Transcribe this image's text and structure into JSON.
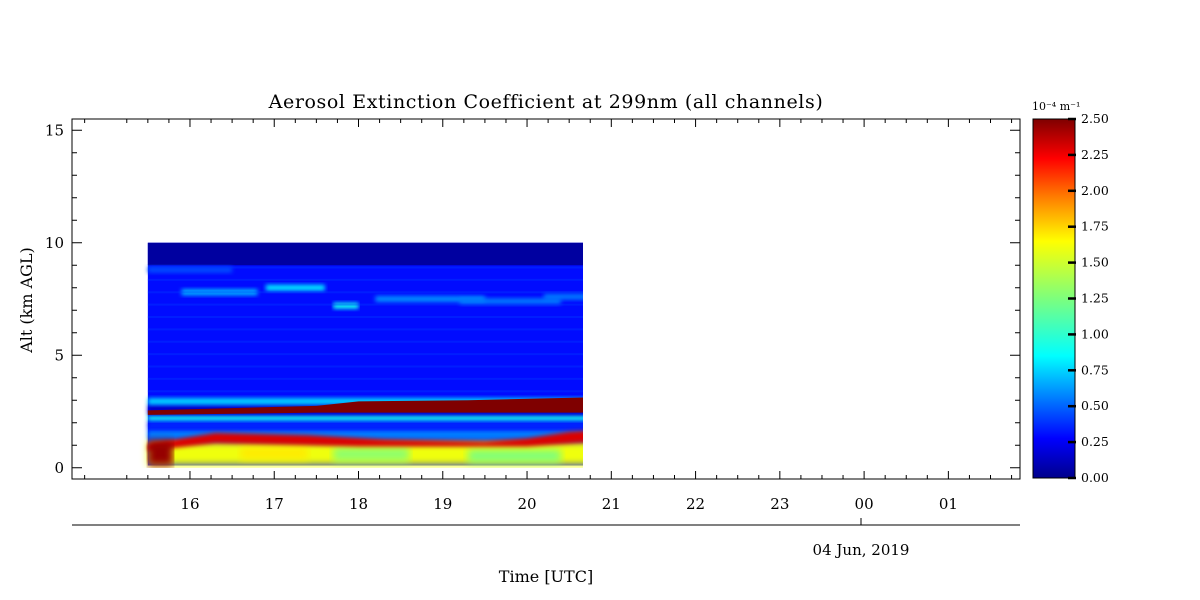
{
  "chart_data": {
    "type": "heatmap",
    "title": "Aerosol Extinction Coefficient at 299nm (all channels)",
    "xlabel": "Time [UTC]",
    "ylabel": "Alt (km AGL)",
    "date_label": "04 Jun, 2019",
    "x_tick_labels": [
      "16",
      "17",
      "18",
      "19",
      "20",
      "21",
      "22",
      "23",
      "00",
      "01"
    ],
    "x_ticks_hours_utc": [
      16,
      17,
      18,
      19,
      20,
      21,
      22,
      23,
      24,
      25
    ],
    "xlim_hours_utc": [
      14.6,
      25.85
    ],
    "y_tick_labels": [
      "0",
      "5",
      "10",
      "15"
    ],
    "y_ticks": [
      0,
      5,
      10,
      15
    ],
    "ylim": [
      -0.5,
      15.5
    ],
    "data_extent": {
      "x_hours_utc": [
        15.5,
        20.95
      ],
      "y_km": [
        0.1,
        10.0
      ]
    },
    "colorbar": {
      "unit": "10⁻⁴ m⁻¹",
      "range": [
        0,
        2.5
      ],
      "colormap": "jet",
      "tick_labels": [
        "0.00",
        "0.25",
        "0.50",
        "0.75",
        "1.00",
        "1.25",
        "1.50",
        "1.75",
        "2.00",
        "2.25",
        "2.50"
      ],
      "ticks": [
        0,
        0.25,
        0.5,
        0.75,
        1.0,
        1.25,
        1.5,
        1.75,
        2.0,
        2.25,
        2.5
      ]
    },
    "features": [
      {
        "description": "surface aerosol layer",
        "alt_km": [
          0.1,
          1.2
        ],
        "value_approx": 1.6
      },
      {
        "description": "boundary layer top, high extinction",
        "alt_km": [
          1.0,
          1.5
        ],
        "value_approx": 2.3
      },
      {
        "description": "elevated dense layer (saturated)",
        "alt_km": [
          2.3,
          3.1
        ],
        "value_approx": 2.5
      },
      {
        "description": "free troposphere background",
        "alt_km": [
          3.1,
          9.0
        ],
        "value_approx": 0.3
      },
      {
        "description": "above 9 km",
        "alt_km": [
          9.0,
          10.0
        ],
        "value_approx": 0.05
      }
    ]
  }
}
